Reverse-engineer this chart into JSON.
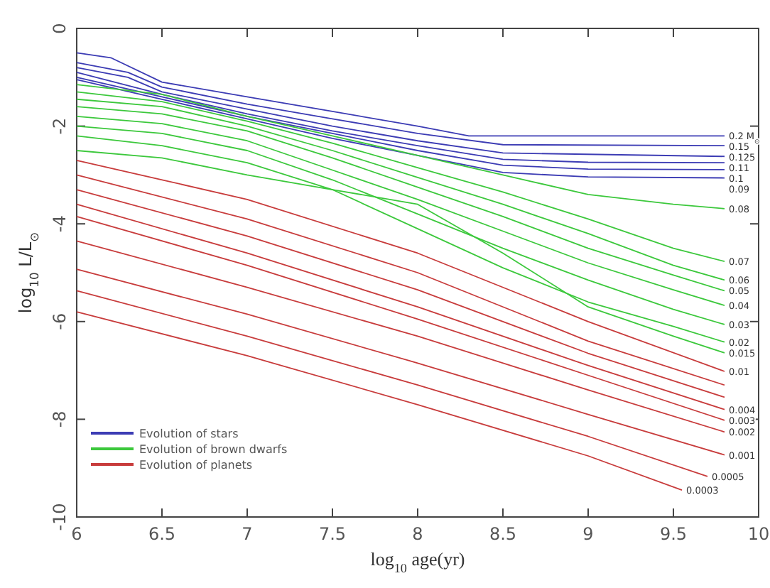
{
  "chart_data": {
    "type": "line",
    "xlabel": "log$_{10}$ age(yr)",
    "ylabel": "log$_{10}$ L/L$_{⊙}$",
    "xlim": [
      6,
      10
    ],
    "ylim": [
      -10,
      0
    ],
    "xticks": [
      6,
      6.5,
      7,
      7.5,
      8,
      8.5,
      9,
      9.5,
      10
    ],
    "yticks": [
      -10,
      -8,
      -6,
      -4,
      -2,
      0
    ],
    "grid": false,
    "legend": "bottom left",
    "marker": "none",
    "line_style": "solid",
    "series": [
      {
        "name": "Evolution of stars",
        "color": "#3c3cb4",
        "x": [
          6,
          6.2,
          6.5,
          7,
          7.5,
          8,
          8.3,
          9.8
        ],
        "values": [
          -0.5,
          -0.6,
          -1.1,
          -1.4,
          -1.7,
          -2.0,
          -2.2,
          -2.2
        ]
      },
      {
        "color": "#3c3cb4",
        "x": [
          6,
          6.3,
          6.5,
          7,
          7.5,
          8,
          8.5,
          9.8
        ],
        "values": [
          -0.7,
          -0.9,
          -1.2,
          -1.55,
          -1.85,
          -2.15,
          -2.38,
          -2.4
        ]
      },
      {
        "color": "#3c3cb4",
        "x": [
          6,
          6.3,
          6.5,
          7,
          7.5,
          8,
          8.5,
          9.8
        ],
        "values": [
          -0.8,
          -1.0,
          -1.3,
          -1.65,
          -2.0,
          -2.3,
          -2.55,
          -2.62
        ]
      },
      {
        "color": "#3c3cb4",
        "x": [
          6,
          6.5,
          7,
          7.5,
          8,
          8.5,
          9,
          9.8
        ],
        "values": [
          -0.9,
          -1.35,
          -1.75,
          -2.1,
          -2.4,
          -2.68,
          -2.74,
          -2.75
        ]
      },
      {
        "color": "#3c3cb4",
        "x": [
          6,
          6.5,
          7,
          7.5,
          8,
          8.5,
          9,
          9.8
        ],
        "values": [
          -1.0,
          -1.4,
          -1.8,
          -2.15,
          -2.5,
          -2.8,
          -2.88,
          -2.89
        ]
      },
      {
        "color": "#3c3cb4",
        "x": [
          6,
          6.5,
          7,
          7.5,
          8,
          8.5,
          9,
          9.8
        ],
        "values": [
          -1.05,
          -1.45,
          -1.85,
          -2.25,
          -2.6,
          -2.95,
          -3.04,
          -3.06
        ]
      },
      {
        "name": "Evolution of brown dwarfs",
        "color": "#3cc83c",
        "x": [
          6,
          6.5,
          7,
          7.5,
          8,
          8.5,
          9,
          9.5,
          9.8
        ],
        "values": [
          -1.15,
          -1.35,
          -1.8,
          -2.2,
          -2.6,
          -3.0,
          -3.4,
          -3.6,
          -3.69
        ]
      },
      {
        "color": "#3cc83c",
        "x": [
          6,
          6.5,
          7,
          7.5,
          8,
          8.5,
          9,
          9.5,
          9.8
        ],
        "values": [
          -1.3,
          -1.5,
          -1.9,
          -2.35,
          -2.85,
          -3.35,
          -3.9,
          -4.5,
          -4.77
        ]
      },
      {
        "color": "#3cc83c",
        "x": [
          6,
          6.5,
          7,
          7.5,
          8,
          8.5,
          9,
          9.5,
          9.8
        ],
        "values": [
          -1.45,
          -1.6,
          -2.0,
          -2.5,
          -3.05,
          -3.6,
          -4.2,
          -4.85,
          -5.15
        ]
      },
      {
        "color": "#3cc83c",
        "x": [
          6,
          6.5,
          7,
          7.5,
          8,
          8.5,
          9,
          9.5,
          9.8
        ],
        "values": [
          -1.6,
          -1.75,
          -2.1,
          -2.65,
          -3.25,
          -3.85,
          -4.5,
          -5.05,
          -5.37
        ]
      },
      {
        "color": "#3cc83c",
        "x": [
          6,
          6.5,
          7,
          7.5,
          8,
          8.5,
          9,
          9.5,
          9.8
        ],
        "values": [
          -1.8,
          -1.95,
          -2.3,
          -2.9,
          -3.5,
          -4.15,
          -4.8,
          -5.35,
          -5.67
        ]
      },
      {
        "color": "#3cc83c",
        "x": [
          6,
          6.5,
          7,
          7.5,
          8,
          8.5,
          9,
          9.5,
          9.8
        ],
        "values": [
          -2.0,
          -2.15,
          -2.5,
          -3.1,
          -3.8,
          -4.5,
          -5.15,
          -5.75,
          -6.06
        ]
      },
      {
        "color": "#3cc83c",
        "x": [
          6,
          6.5,
          7,
          7.5,
          8,
          8.5,
          9,
          9.5,
          9.8
        ],
        "values": [
          -2.2,
          -2.4,
          -2.75,
          -3.3,
          -4.1,
          -4.9,
          -5.6,
          -6.1,
          -6.42
        ]
      },
      {
        "color": "#3cc83c",
        "x": [
          6,
          6.5,
          7,
          7.5,
          8,
          8.5,
          9,
          9.5,
          9.8
        ],
        "values": [
          -2.5,
          -2.65,
          -3.0,
          -3.3,
          -3.6,
          -4.6,
          -5.7,
          -6.3,
          -6.64
        ]
      },
      {
        "name": "Evolution of planets",
        "color": "#c83c3c",
        "x": [
          6,
          7,
          8,
          9,
          9.8
        ],
        "values": [
          -2.7,
          -3.5,
          -4.6,
          -6.0,
          -7.02
        ]
      },
      {
        "color": "#c83c3c",
        "x": [
          6,
          7,
          8,
          9,
          9.8
        ],
        "values": [
          -3.0,
          -3.9,
          -5.0,
          -6.4,
          -7.3
        ]
      },
      {
        "color": "#c83c3c",
        "x": [
          6,
          7,
          8,
          9,
          9.8
        ],
        "values": [
          -3.3,
          -4.25,
          -5.35,
          -6.65,
          -7.55
        ]
      },
      {
        "color": "#c83c3c",
        "x": [
          6,
          7,
          8,
          9,
          9.8
        ],
        "values": [
          -3.6,
          -4.6,
          -5.7,
          -6.9,
          -7.8
        ]
      },
      {
        "color": "#c83c3c",
        "x": [
          6,
          7,
          8,
          9,
          9.8
        ],
        "values": [
          -3.85,
          -4.85,
          -5.95,
          -7.1,
          -8.02
        ]
      },
      {
        "color": "#c83c3c",
        "x": [
          6,
          7,
          8,
          9,
          9.8
        ],
        "values": [
          -4.35,
          -5.3,
          -6.3,
          -7.4,
          -8.26
        ]
      },
      {
        "color": "#c83c3c",
        "x": [
          6,
          7,
          8,
          9,
          9.8
        ],
        "values": [
          -4.93,
          -5.85,
          -6.85,
          -7.9,
          -8.73
        ]
      },
      {
        "color": "#c83c3c",
        "x": [
          6,
          7,
          8,
          9,
          9.7
        ],
        "values": [
          -5.37,
          -6.3,
          -7.3,
          -8.35,
          -9.17
        ]
      },
      {
        "color": "#c83c3c",
        "x": [
          6,
          7,
          8,
          9,
          9.55
        ],
        "values": [
          -5.8,
          -6.7,
          -7.7,
          -8.75,
          -9.45
        ]
      }
    ],
    "annotations": [
      {
        "text": "0.2 M$_{⊙}$",
        "x": 9.8,
        "y": -2.2
      },
      {
        "text": "0.15",
        "x": 9.8,
        "y": -2.4
      },
      {
        "text": "0.125",
        "x": 9.8,
        "y": -2.62
      },
      {
        "text": "0.11",
        "x": 9.8,
        "y": -2.75
      },
      {
        "text": "0.1",
        "x": 9.8,
        "y": -2.89
      },
      {
        "text": "0.09",
        "x": 9.8,
        "y": -3.06
      },
      {
        "text": "0.08",
        "x": 9.8,
        "y": -3.69
      },
      {
        "text": "0.07",
        "x": 9.8,
        "y": -4.77
      },
      {
        "text": "0.06",
        "x": 9.8,
        "y": -5.15
      },
      {
        "text": "0.05",
        "x": 9.8,
        "y": -5.37
      },
      {
        "text": "0.04",
        "x": 9.8,
        "y": -5.67
      },
      {
        "text": "0.03",
        "x": 9.8,
        "y": -6.06
      },
      {
        "text": "0.02",
        "x": 9.8,
        "y": -6.42
      },
      {
        "text": "0.015",
        "x": 9.8,
        "y": -6.64
      },
      {
        "text": "0.01",
        "x": 9.8,
        "y": -7.02
      },
      {
        "text": "0.004",
        "x": 9.8,
        "y": -7.8
      },
      {
        "text": "0.003",
        "x": 9.8,
        "y": -8.02
      },
      {
        "text": "0.002",
        "x": 9.8,
        "y": -8.26
      },
      {
        "text": "0.001",
        "x": 9.8,
        "y": -8.73
      },
      {
        "text": "0.0005",
        "x": 9.7,
        "y": -9.17
      },
      {
        "text": "0.0003",
        "x": 9.55,
        "y": -9.45
      }
    ]
  }
}
